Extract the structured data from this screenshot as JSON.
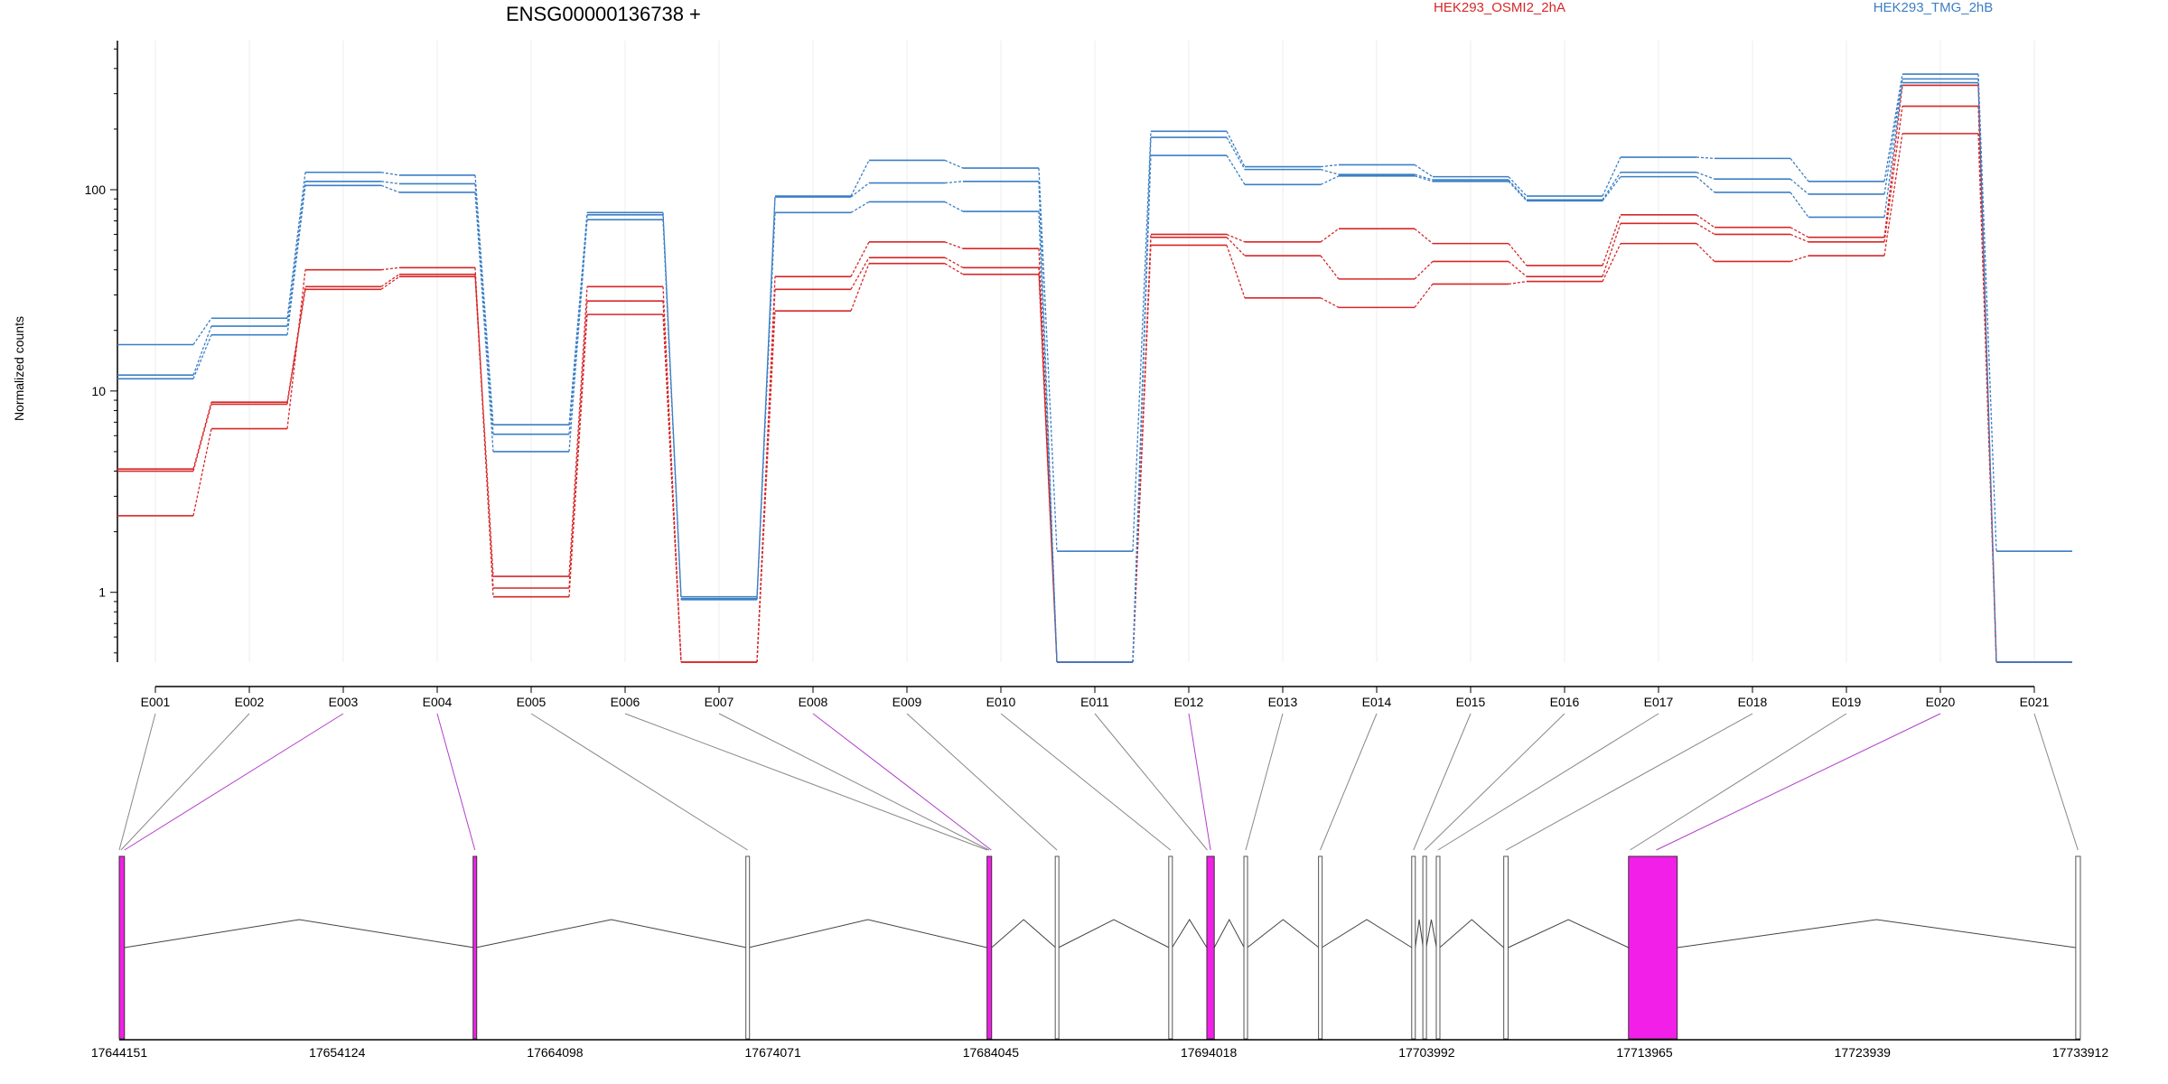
{
  "chart_data": {
    "type": "line",
    "title": "ENSG00000136738 +",
    "ylabel": "Normalized counts",
    "yscale": "log",
    "ylim": [
      0.45,
      550
    ],
    "y_ticks": [
      "1",
      "10",
      "100"
    ],
    "grid": "vertical",
    "legend_position": "top-right",
    "groups": [
      {
        "name": "HEK293_OSMI2_2hA",
        "color": "#d62728"
      },
      {
        "name": "HEK293_TMG_2hB",
        "color": "#3b7fc4"
      }
    ],
    "exons": [
      "E001",
      "E002",
      "E003",
      "E004",
      "E005",
      "E006",
      "E007",
      "E008",
      "E009",
      "E010",
      "E011",
      "E012",
      "E013",
      "E014",
      "E015",
      "E016",
      "E017",
      "E018",
      "E019",
      "E020",
      "E021"
    ],
    "series": [
      {
        "group": 0,
        "values": [
          4.1,
          8.8,
          33,
          38,
          1.2,
          33,
          0.45,
          37,
          55,
          51,
          0.45,
          60,
          55,
          64,
          54,
          42,
          75,
          65,
          58,
          330,
          0.45
        ]
      },
      {
        "group": 0,
        "values": [
          4.0,
          8.6,
          32,
          37,
          1.05,
          28,
          0.45,
          32,
          46,
          41,
          0.45,
          58,
          47,
          36,
          44,
          37,
          68,
          60,
          55,
          260,
          0.45
        ]
      },
      {
        "group": 0,
        "values": [
          2.4,
          6.5,
          40,
          41,
          0.95,
          24,
          0.45,
          25,
          43,
          38,
          0.45,
          53,
          29,
          26,
          34,
          35,
          54,
          44,
          47,
          190,
          0.45
        ]
      },
      {
        "group": 1,
        "values": [
          17,
          23,
          122,
          118,
          6.8,
          77,
          0.95,
          93,
          140,
          128,
          1.6,
          195,
          130,
          133,
          116,
          93,
          145,
          143,
          110,
          375,
          1.6
        ]
      },
      {
        "group": 1,
        "values": [
          12,
          21,
          110,
          107,
          6.1,
          75,
          0.93,
          92,
          108,
          110,
          0.45,
          182,
          126,
          119,
          112,
          89,
          122,
          113,
          95,
          355,
          0.45
        ]
      },
      {
        "group": 1,
        "values": [
          11.5,
          19,
          105,
          97,
          5.0,
          71,
          0.92,
          77,
          87,
          78,
          0.45,
          148,
          106,
          117,
          110,
          88,
          116,
          97,
          73,
          340,
          0.45
        ]
      }
    ],
    "genomic_ticks": [
      "17644151",
      "17654124",
      "17664098",
      "17674071",
      "17684045",
      "17694018",
      "17703992",
      "17713965",
      "17723939",
      "17733912"
    ],
    "genomic_range": [
      17644151,
      17733912
    ],
    "gene_exons": [
      {
        "start": 17644151,
        "end": 17644390,
        "highlight": true
      },
      {
        "start": 17660390,
        "end": 17660470,
        "highlight": true
      },
      {
        "start": 17672870,
        "end": 17672960,
        "highlight": false
      },
      {
        "start": 17683870,
        "end": 17684080,
        "highlight": true
      },
      {
        "start": 17687010,
        "end": 17687140,
        "highlight": false
      },
      {
        "start": 17692200,
        "end": 17692340,
        "highlight": false
      },
      {
        "start": 17693930,
        "end": 17694270,
        "highlight": true
      },
      {
        "start": 17695640,
        "end": 17695780,
        "highlight": false
      },
      {
        "start": 17699060,
        "end": 17699190,
        "highlight": false
      },
      {
        "start": 17703310,
        "end": 17703470,
        "highlight": false
      },
      {
        "start": 17703830,
        "end": 17703970,
        "highlight": false
      },
      {
        "start": 17704440,
        "end": 17704590,
        "highlight": false
      },
      {
        "start": 17707520,
        "end": 17707720,
        "highlight": false
      },
      {
        "start": 17713230,
        "end": 17715460,
        "highlight": true
      },
      {
        "start": 17733700,
        "end": 17733912,
        "highlight": false
      }
    ],
    "exon_links": [
      {
        "exon": 0,
        "pos": 17644151,
        "highlight": false
      },
      {
        "exon": 1,
        "pos": 17644230,
        "highlight": false
      },
      {
        "exon": 2,
        "pos": 17644390,
        "highlight": true
      },
      {
        "exon": 3,
        "pos": 17660430,
        "highlight": true
      },
      {
        "exon": 4,
        "pos": 17672910,
        "highlight": false
      },
      {
        "exon": 5,
        "pos": 17683880,
        "highlight": false
      },
      {
        "exon": 6,
        "pos": 17683960,
        "highlight": false
      },
      {
        "exon": 7,
        "pos": 17684060,
        "highlight": true
      },
      {
        "exon": 8,
        "pos": 17687070,
        "highlight": false
      },
      {
        "exon": 9,
        "pos": 17692270,
        "highlight": false
      },
      {
        "exon": 10,
        "pos": 17693950,
        "highlight": false
      },
      {
        "exon": 11,
        "pos": 17694100,
        "highlight": true
      },
      {
        "exon": 12,
        "pos": 17695710,
        "highlight": false
      },
      {
        "exon": 13,
        "pos": 17699120,
        "highlight": false
      },
      {
        "exon": 14,
        "pos": 17703390,
        "highlight": false
      },
      {
        "exon": 15,
        "pos": 17703900,
        "highlight": false
      },
      {
        "exon": 16,
        "pos": 17704510,
        "highlight": false
      },
      {
        "exon": 17,
        "pos": 17707620,
        "highlight": false
      },
      {
        "exon": 18,
        "pos": 17713300,
        "highlight": false
      },
      {
        "exon": 19,
        "pos": 17714500,
        "highlight": true
      },
      {
        "exon": 20,
        "pos": 17733800,
        "highlight": false
      }
    ],
    "colors": {
      "exon_highlight": "#f21fe8",
      "link_highlight": "#b040c8",
      "link_normal": "#888888",
      "intron": "#444444"
    }
  }
}
